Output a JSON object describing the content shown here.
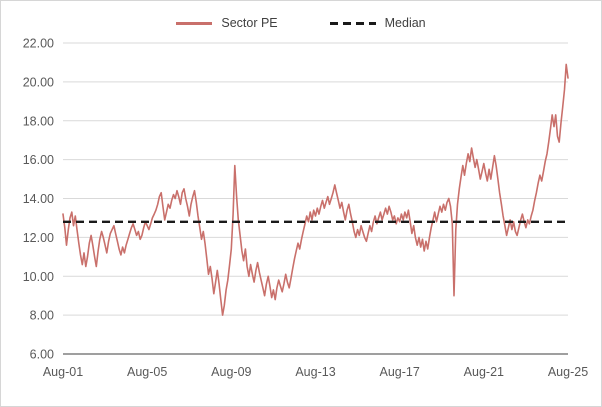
{
  "colors": {
    "series": "#c9706b",
    "median": "#1a1a1a",
    "grid": "#d9d9d9",
    "axis": "#3f3f3f",
    "tick_text": "#595959",
    "legend_text": "#404040",
    "background": "#ffffff"
  },
  "chart_data": {
    "type": "line",
    "title": "",
    "xlabel": "",
    "ylabel": "",
    "legend_position": "top-center",
    "grid": "horizontal",
    "ylim": [
      6,
      22
    ],
    "y_ticks": [
      6,
      8,
      10,
      12,
      14,
      16,
      18,
      20,
      22
    ],
    "y_tick_labels": [
      "6.00",
      "8.00",
      "10.00",
      "12.00",
      "14.00",
      "16.00",
      "18.00",
      "20.00",
      "22.00"
    ],
    "x_ticks": [
      {
        "label": "Aug-01",
        "month": 0
      },
      {
        "label": "Aug-05",
        "month": 48
      },
      {
        "label": "Aug-09",
        "month": 96
      },
      {
        "label": "Aug-13",
        "month": 144
      },
      {
        "label": "Aug-17",
        "month": 192
      },
      {
        "label": "Aug-21",
        "month": 240
      },
      {
        "label": "Aug-25",
        "month": 288
      }
    ],
    "median_value": 12.8,
    "legend": [
      {
        "label": "Sector PE",
        "style": "solid"
      },
      {
        "label": "Median",
        "style": "dashed"
      }
    ],
    "series": [
      {
        "name": "Sector PE",
        "frequency": "monthly",
        "start": "Aug-2001",
        "end": "Aug-2025",
        "values": [
          13.2,
          12.5,
          11.6,
          12.4,
          13.0,
          13.3,
          12.6,
          13.1,
          12.4,
          11.7,
          11.1,
          10.6,
          11.2,
          10.5,
          11.0,
          11.7,
          12.1,
          11.6,
          11.0,
          10.5,
          11.3,
          11.9,
          12.3,
          12.0,
          11.6,
          11.2,
          11.8,
          12.2,
          12.4,
          12.6,
          12.2,
          11.8,
          11.4,
          11.1,
          11.5,
          11.2,
          11.6,
          11.9,
          12.2,
          12.5,
          12.7,
          12.4,
          12.1,
          12.3,
          11.9,
          12.1,
          12.5,
          12.8,
          12.6,
          12.4,
          12.7,
          13.0,
          13.2,
          13.4,
          13.7,
          14.1,
          14.3,
          13.6,
          12.9,
          13.3,
          13.7,
          13.5,
          13.9,
          14.2,
          14.0,
          14.4,
          14.1,
          13.7,
          14.3,
          14.5,
          14.0,
          13.6,
          13.1,
          13.7,
          14.1,
          14.4,
          13.8,
          13.1,
          12.5,
          11.9,
          12.3,
          11.7,
          10.9,
          10.1,
          10.5,
          9.9,
          9.1,
          9.7,
          10.3,
          9.6,
          8.8,
          8.0,
          8.5,
          9.3,
          9.8,
          10.6,
          11.4,
          13.2,
          15.7,
          14.1,
          12.9,
          12.1,
          11.3,
          10.8,
          11.4,
          10.5,
          10.0,
          10.6,
          10.1,
          9.7,
          10.3,
          10.7,
          10.2,
          9.8,
          9.4,
          9.0,
          9.6,
          10.0,
          9.5,
          8.9,
          9.3,
          8.8,
          9.4,
          9.8,
          9.5,
          9.2,
          9.6,
          10.1,
          9.7,
          9.4,
          9.9,
          10.4,
          10.9,
          11.3,
          11.7,
          11.4,
          11.9,
          12.3,
          12.7,
          13.1,
          12.8,
          13.3,
          12.9,
          13.4,
          13.1,
          13.5,
          13.2,
          13.6,
          13.9,
          13.5,
          13.8,
          14.1,
          13.7,
          14.0,
          14.3,
          14.7,
          14.3,
          13.9,
          13.5,
          13.8,
          13.3,
          12.9,
          13.4,
          13.7,
          13.2,
          12.8,
          12.3,
          12.0,
          12.4,
          12.1,
          12.6,
          12.3,
          12.0,
          11.8,
          12.2,
          12.6,
          12.3,
          12.8,
          13.1,
          12.7,
          13.0,
          13.3,
          12.9,
          13.2,
          13.5,
          13.2,
          13.6,
          13.3,
          12.9,
          13.1,
          12.7,
          13.0,
          12.8,
          13.2,
          12.9,
          13.3,
          13.0,
          13.4,
          12.8,
          12.2,
          12.6,
          12.0,
          11.6,
          12.0,
          11.5,
          11.9,
          11.3,
          11.8,
          11.4,
          12.0,
          12.5,
          12.9,
          13.3,
          12.8,
          13.2,
          13.6,
          13.3,
          13.7,
          13.4,
          13.8,
          14.0,
          13.6,
          12.7,
          9.0,
          12.4,
          13.7,
          14.5,
          15.1,
          15.7,
          15.2,
          15.8,
          16.3,
          15.9,
          16.6,
          16.1,
          15.6,
          16.0,
          15.5,
          15.0,
          15.4,
          15.8,
          15.3,
          14.9,
          15.5,
          15.0,
          15.6,
          16.2,
          15.7,
          15.0,
          14.3,
          13.7,
          13.1,
          12.6,
          12.1,
          12.5,
          12.9,
          12.4,
          12.8,
          12.3,
          12.1,
          12.5,
          12.9,
          13.2,
          12.8,
          12.5,
          12.9,
          12.7,
          13.1,
          13.4,
          13.9,
          14.3,
          14.8,
          15.2,
          14.9,
          15.4,
          15.9,
          16.3,
          16.9,
          17.6,
          18.3,
          17.7,
          18.3,
          17.2,
          16.9,
          17.9,
          18.7,
          19.6,
          20.9,
          20.2
        ]
      }
    ]
  }
}
